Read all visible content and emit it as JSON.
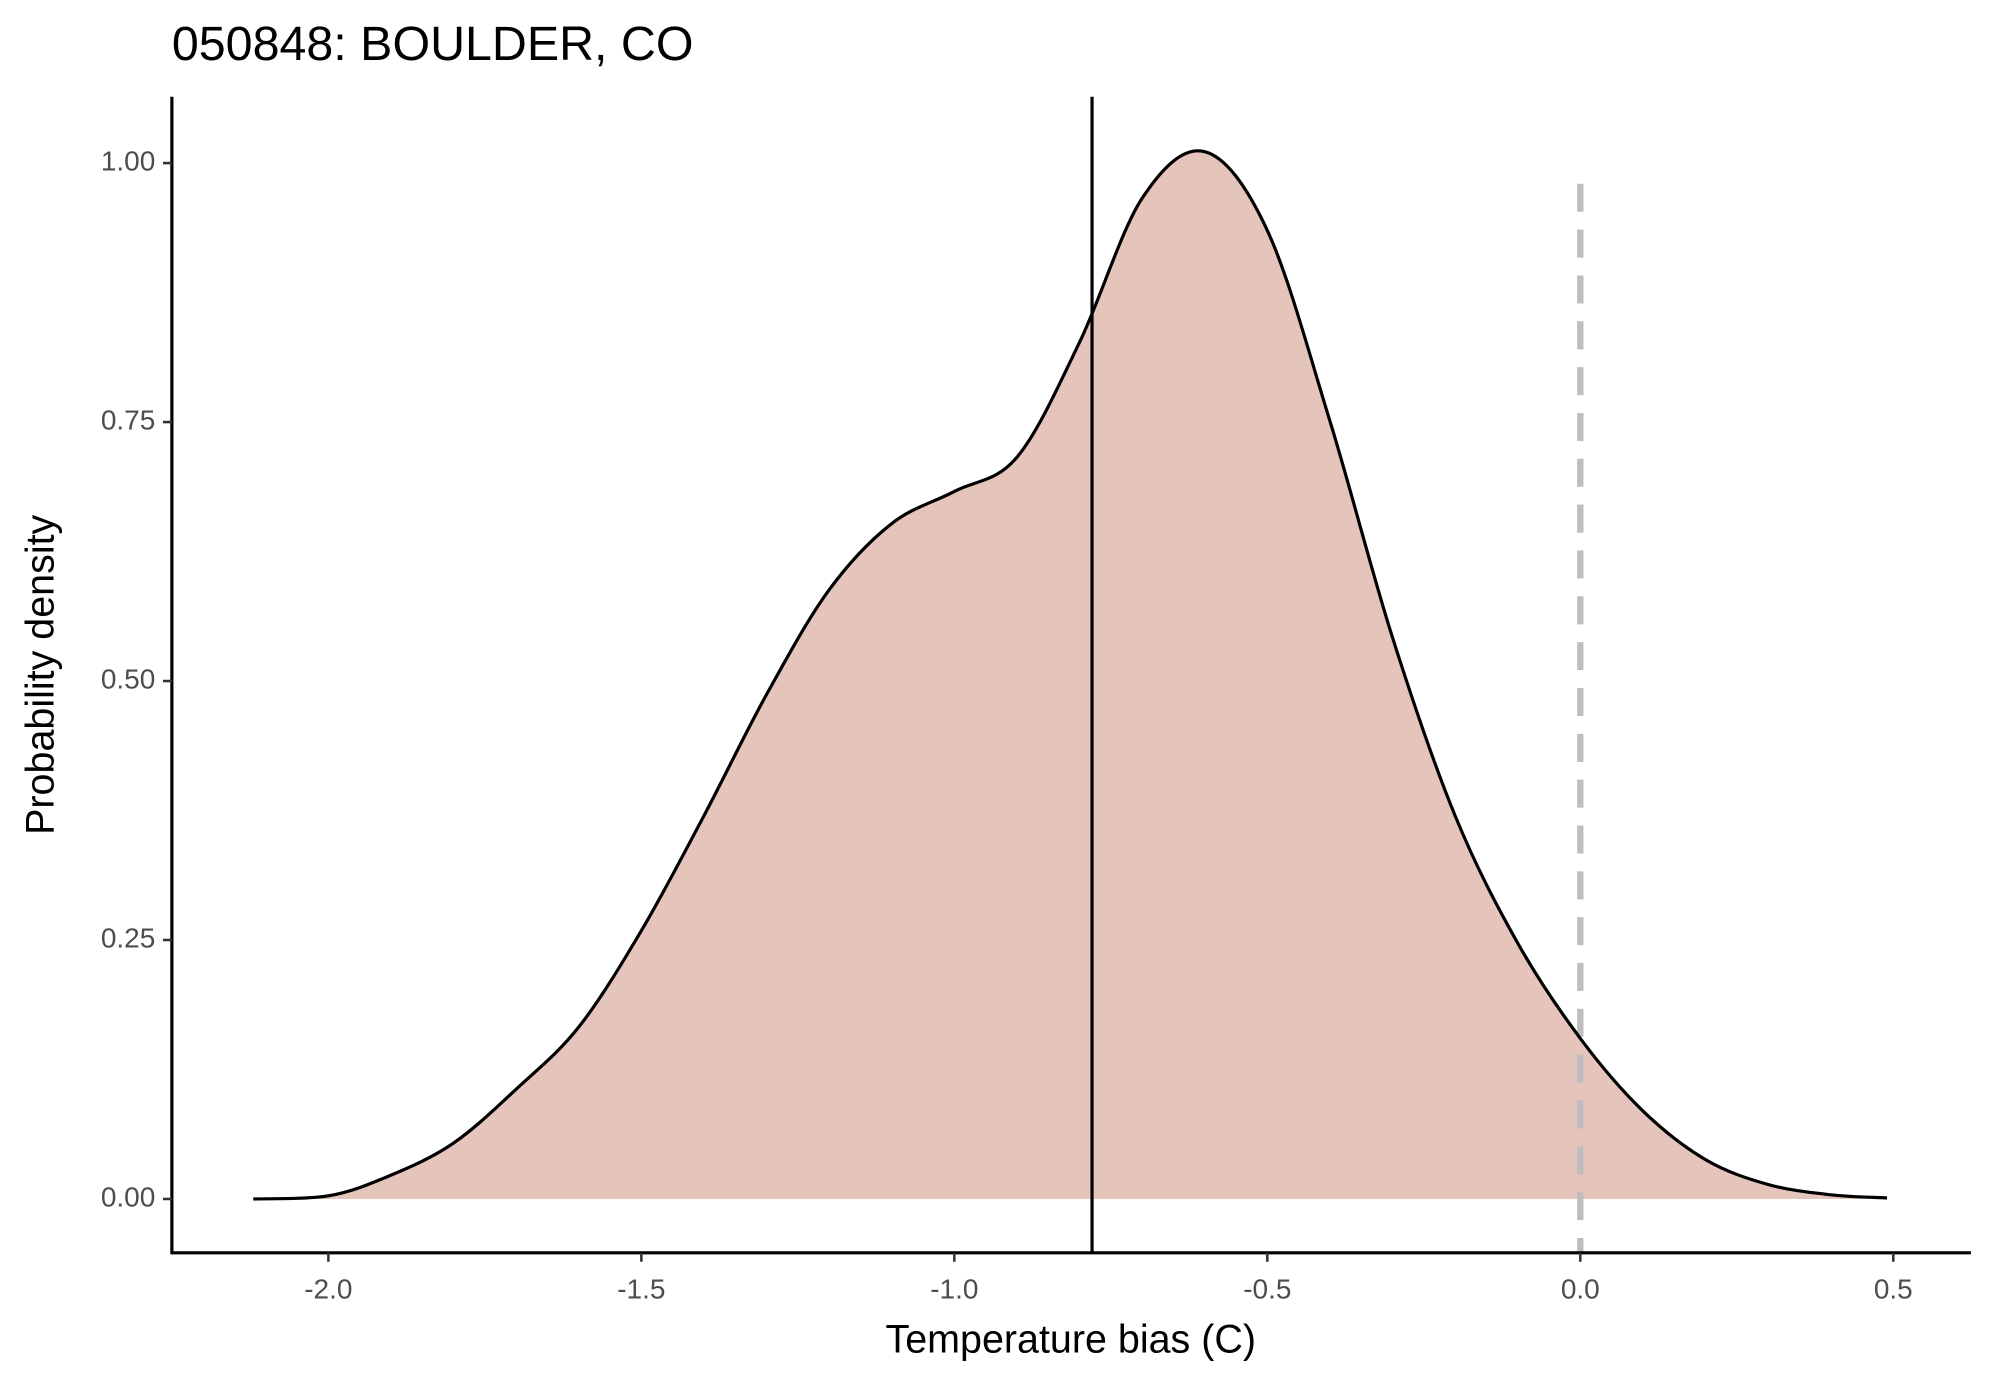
{
  "chart_data": {
    "type": "density",
    "title": "050848: BOULDER, CO",
    "x_label": "Temperature bias (C)",
    "y_label": "Probability density",
    "x": [
      -2.12,
      -2.0,
      -1.9,
      -1.8,
      -1.7,
      -1.6,
      -1.5,
      -1.4,
      -1.3,
      -1.2,
      -1.1,
      -1.0,
      -0.9,
      -0.8,
      -0.7,
      -0.6,
      -0.5,
      -0.4,
      -0.3,
      -0.2,
      -0.1,
      0.0,
      0.1,
      0.2,
      0.3,
      0.4,
      0.49
    ],
    "series": [
      {
        "color": "#e4c4bb",
        "values": [
          0.0,
          0.003,
          0.023,
          0.054,
          0.106,
          0.166,
          0.259,
          0.37,
          0.487,
          0.588,
          0.652,
          0.683,
          0.716,
          0.827,
          0.966,
          1.011,
          0.935,
          0.751,
          0.542,
          0.37,
          0.247,
          0.155,
          0.085,
          0.038,
          0.014,
          0.004,
          0.001
        ]
      }
    ],
    "mean_line": -0.78,
    "reference_line": 0,
    "xlim": [
      -2.25,
      0.624
    ],
    "ylim": [
      -0.052,
      1.064
    ],
    "xticks": [
      {
        "value": -2,
        "label": "-2.0"
      },
      -1.5,
      {
        "value": -1,
        "label": "-1.0"
      },
      -0.5,
      {
        "value": 0,
        "label": "0.0"
      },
      0.5
    ],
    "yticks": [
      {
        "value": 0,
        "label": "0.00"
      },
      {
        "value": 0.25,
        "label": "0.25"
      },
      {
        "value": 0.5,
        "label": "0.50"
      },
      {
        "value": 0.75,
        "label": "0.75"
      },
      {
        "value": 1,
        "label": "1.00"
      }
    ]
  }
}
